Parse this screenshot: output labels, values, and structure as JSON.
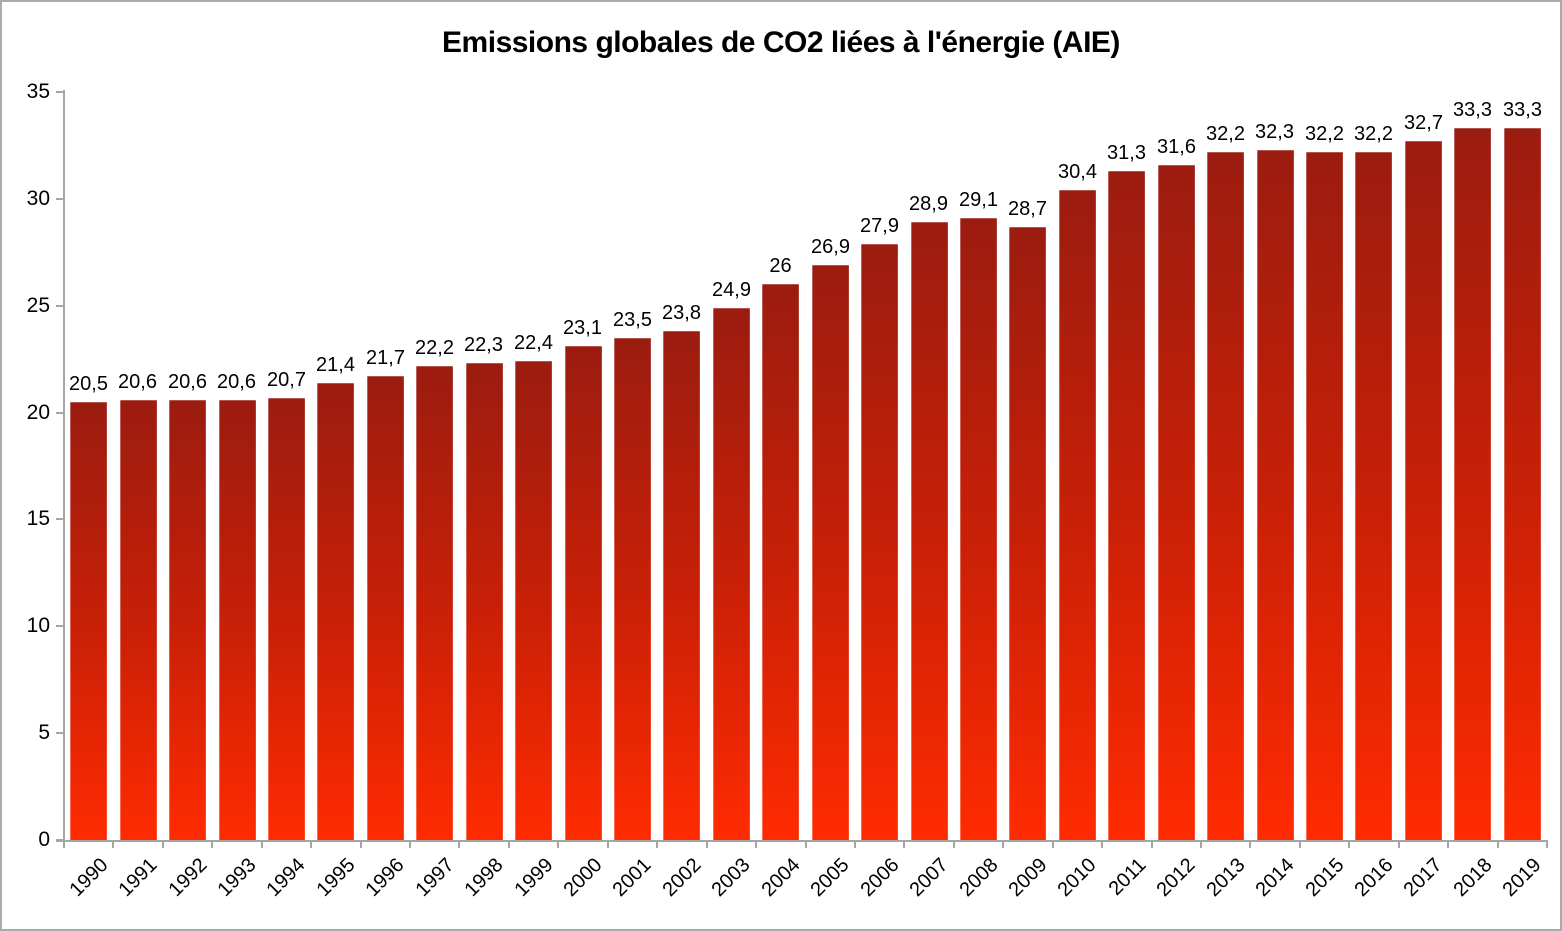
{
  "chart_data": {
    "type": "bar",
    "title": "Emissions globales de CO2 liées à l'énergie (AIE)",
    "xlabel": "",
    "ylabel": "",
    "categories": [
      "1990",
      "1991",
      "1992",
      "1993",
      "1994",
      "1995",
      "1996",
      "1997",
      "1998",
      "1999",
      "2000",
      "2001",
      "2002",
      "2003",
      "2004",
      "2005",
      "2006",
      "2007",
      "2008",
      "2009",
      "2010",
      "2011",
      "2012",
      "2013",
      "2014",
      "2015",
      "2016",
      "2017",
      "2018",
      "2019"
    ],
    "values": [
      20.5,
      20.6,
      20.6,
      20.6,
      20.7,
      21.4,
      21.7,
      22.2,
      22.3,
      22.4,
      23.1,
      23.5,
      23.8,
      24.9,
      26,
      26.9,
      27.9,
      28.9,
      29.1,
      28.7,
      30.4,
      31.3,
      31.6,
      32.2,
      32.3,
      32.2,
      32.2,
      32.7,
      33.3,
      33.3
    ],
    "value_labels": [
      "20,5",
      "20,6",
      "20,6",
      "20,6",
      "20,7",
      "21,4",
      "21,7",
      "22,2",
      "22,3",
      "22,4",
      "23,1",
      "23,5",
      "23,8",
      "24,9",
      "26",
      "26,9",
      "27,9",
      "28,9",
      "29,1",
      "28,7",
      "30,4",
      "31,3",
      "31,6",
      "32,2",
      "32,3",
      "32,2",
      "32,2",
      "32,7",
      "33,3",
      "33,3"
    ],
    "ylim": [
      0,
      35
    ],
    "y_ticks": [
      0,
      5,
      10,
      15,
      20,
      25,
      30,
      35
    ],
    "grid": false,
    "legend": false,
    "data_labels": true,
    "colors": {
      "bar_gradient_top": "#9B1C10",
      "bar_gradient_mid": "#C92007",
      "bar_gradient_bottom": "#FF2B00",
      "axis": "#A6A6A6",
      "text": "#000000",
      "background": "#FFFFFF",
      "frame_border": "#ABABAB"
    }
  }
}
